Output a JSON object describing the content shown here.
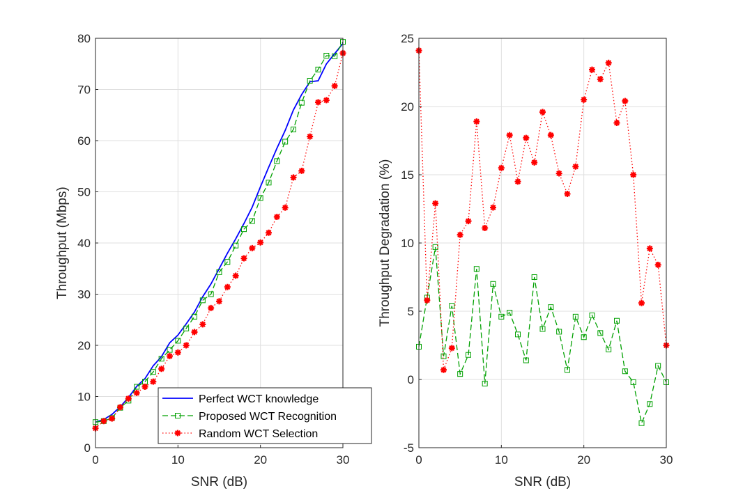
{
  "chart_data": [
    {
      "type": "line",
      "title": "",
      "xlabel": "SNR (dB)",
      "ylabel": "Throughput (Mbps)",
      "xlim": [
        0,
        30
      ],
      "ylim": [
        0,
        80
      ],
      "xticks": [
        0,
        10,
        20,
        30
      ],
      "yticks": [
        0,
        10,
        20,
        30,
        40,
        50,
        60,
        70,
        80
      ],
      "grid": true,
      "legend_position": "bottom-right",
      "x": [
        0,
        1,
        2,
        3,
        4,
        5,
        6,
        7,
        8,
        9,
        10,
        11,
        12,
        13,
        14,
        15,
        16,
        17,
        18,
        19,
        20,
        21,
        22,
        23,
        24,
        25,
        26,
        27,
        28,
        29,
        30
      ],
      "series": [
        {
          "name": "Perfect WCT knowledge",
          "color": "#0000ff",
          "line_style": "solid",
          "marker": "none",
          "values": [
            5.0,
            5.5,
            6.5,
            8.0,
            9.8,
            12.0,
            13.5,
            16.0,
            17.8,
            20.5,
            22.0,
            24.2,
            26.5,
            29.5,
            32.0,
            35.0,
            38.0,
            40.8,
            43.8,
            47.0,
            51.0,
            54.8,
            58.5,
            62.0,
            66.0,
            69.0,
            71.5,
            71.7,
            75.0,
            77.0,
            79.0
          ]
        },
        {
          "name": "Proposed WCT Recognition",
          "color": "#00a000",
          "line_style": "dashed",
          "marker": "square",
          "values": [
            5.0,
            5.2,
            5.8,
            7.8,
            9.2,
            11.9,
            12.9,
            14.8,
            17.4,
            19.1,
            20.9,
            23.3,
            25.6,
            28.8,
            30.0,
            34.3,
            36.3,
            39.5,
            42.7,
            44.3,
            48.8,
            51.8,
            56.0,
            59.8,
            62.2,
            67.4,
            71.7,
            73.9,
            76.6,
            76.5,
            79.3
          ]
        },
        {
          "name": "Random WCT Selection",
          "color": "#ff0000",
          "line_style": "dotted",
          "marker": "asterisk",
          "values": [
            3.8,
            5.2,
            5.7,
            7.9,
            9.6,
            10.7,
            11.9,
            12.9,
            15.4,
            17.9,
            18.6,
            20.0,
            22.6,
            24.1,
            27.3,
            28.6,
            31.4,
            33.6,
            37.0,
            39.0,
            40.1,
            42.0,
            45.1,
            46.9,
            52.8,
            54.1,
            60.8,
            67.5,
            67.9,
            70.7,
            77.1
          ]
        }
      ]
    },
    {
      "type": "line",
      "title": "",
      "xlabel": "SNR (dB)",
      "ylabel": "Throughput Degradation (%)",
      "xlim": [
        0,
        30
      ],
      "ylim": [
        -5,
        25
      ],
      "xticks": [
        0,
        10,
        20,
        30
      ],
      "yticks": [
        -5,
        0,
        5,
        10,
        15,
        20,
        25
      ],
      "grid": true,
      "x": [
        0,
        1,
        2,
        3,
        4,
        5,
        6,
        7,
        8,
        9,
        10,
        11,
        12,
        13,
        14,
        15,
        16,
        17,
        18,
        19,
        20,
        21,
        22,
        23,
        24,
        25,
        26,
        27,
        28,
        29,
        30
      ],
      "series": [
        {
          "name": "Proposed WCT Recognition",
          "color": "#00a000",
          "line_style": "dashed",
          "marker": "square",
          "values": [
            2.4,
            6.0,
            9.7,
            1.7,
            5.4,
            0.4,
            1.8,
            8.1,
            -0.3,
            7.0,
            4.6,
            4.9,
            3.3,
            1.4,
            7.5,
            3.7,
            5.3,
            3.5,
            0.7,
            4.6,
            3.1,
            4.7,
            3.4,
            2.2,
            4.3,
            0.6,
            -0.2,
            -3.2,
            -1.8,
            1.0,
            -0.2
          ]
        },
        {
          "name": "Random WCT Selection",
          "color": "#ff0000",
          "line_style": "dotted",
          "marker": "asterisk",
          "values": [
            24.1,
            5.8,
            12.9,
            0.7,
            2.3,
            10.6,
            11.6,
            18.9,
            11.1,
            12.6,
            15.5,
            17.9,
            14.5,
            17.7,
            15.9,
            19.6,
            17.9,
            15.1,
            13.6,
            15.6,
            20.5,
            22.7,
            22.0,
            23.2,
            18.8,
            20.4,
            15.0,
            5.6,
            9.6,
            8.4,
            2.5
          ]
        }
      ]
    }
  ]
}
